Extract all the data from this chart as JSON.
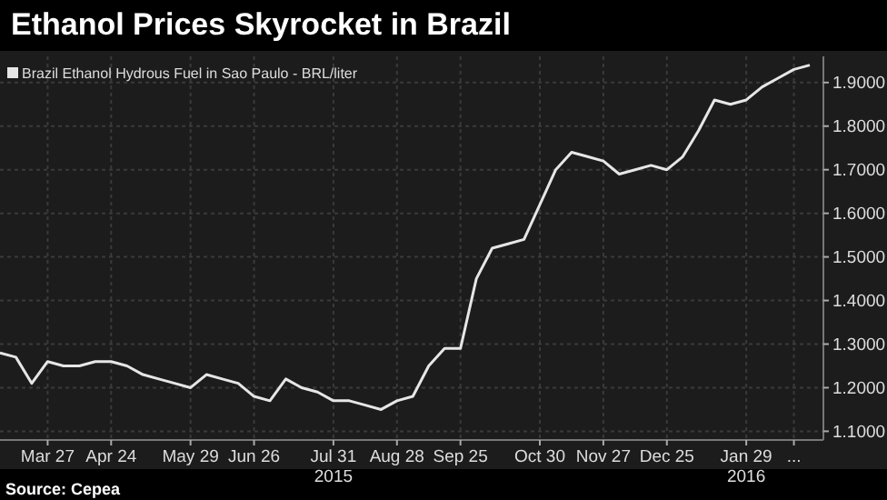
{
  "chart_data": {
    "type": "line",
    "title": "Ethanol Prices Skyrocket in Brazil",
    "x": [
      "2015-03-06",
      "2015-03-13",
      "2015-03-20",
      "2015-03-27",
      "2015-04-03",
      "2015-04-10",
      "2015-04-17",
      "2015-04-24",
      "2015-05-01",
      "2015-05-08",
      "2015-05-15",
      "2015-05-22",
      "2015-05-29",
      "2015-06-05",
      "2015-06-12",
      "2015-06-19",
      "2015-06-26",
      "2015-07-03",
      "2015-07-10",
      "2015-07-17",
      "2015-07-24",
      "2015-07-31",
      "2015-08-07",
      "2015-08-14",
      "2015-08-21",
      "2015-08-28",
      "2015-09-04",
      "2015-09-11",
      "2015-09-18",
      "2015-09-25",
      "2015-10-02",
      "2015-10-09",
      "2015-10-16",
      "2015-10-23",
      "2015-10-30",
      "2015-11-06",
      "2015-11-13",
      "2015-11-20",
      "2015-11-27",
      "2015-12-04",
      "2015-12-11",
      "2015-12-18",
      "2015-12-25",
      "2016-01-01",
      "2016-01-08",
      "2016-01-15",
      "2016-01-22",
      "2016-01-29",
      "2016-02-05",
      "2016-02-12",
      "2016-02-19",
      "2016-02-26"
    ],
    "series": [
      {
        "name": "Brazil Ethanol Hydrous Fuel in Sao Paulo - BRL/liter",
        "color": "#e6e6e6",
        "values": [
          1.28,
          1.27,
          1.21,
          1.26,
          1.25,
          1.25,
          1.26,
          1.26,
          1.25,
          1.23,
          1.22,
          1.21,
          1.2,
          1.23,
          1.22,
          1.21,
          1.18,
          1.17,
          1.22,
          1.2,
          1.19,
          1.17,
          1.17,
          1.16,
          1.15,
          1.17,
          1.18,
          1.25,
          1.29,
          1.29,
          1.45,
          1.52,
          1.53,
          1.54,
          1.62,
          1.7,
          1.74,
          1.73,
          1.72,
          1.69,
          1.7,
          1.71,
          1.7,
          1.73,
          1.79,
          1.86,
          1.85,
          1.86,
          1.89,
          1.91,
          1.93,
          1.94
        ]
      }
    ],
    "xlim": [
      "2015-03-06",
      "2016-03-03"
    ],
    "xticks": [
      {
        "value": "2015-03-27",
        "label": "Mar 27"
      },
      {
        "value": "2015-04-24",
        "label": "Apr 24"
      },
      {
        "value": "2015-05-29",
        "label": "May 29"
      },
      {
        "value": "2015-06-26",
        "label": "Jun 26"
      },
      {
        "value": "2015-07-31",
        "label": "Jul 31\n2015"
      },
      {
        "value": "2015-08-28",
        "label": "Aug 28"
      },
      {
        "value": "2015-09-25",
        "label": "Sep 25"
      },
      {
        "value": "2015-10-30",
        "label": "Oct 30"
      },
      {
        "value": "2015-11-27",
        "label": "Nov 27"
      },
      {
        "value": "2015-12-25",
        "label": "Dec 25"
      },
      {
        "value": "2016-01-29",
        "label": "Jan 29\n2016"
      },
      {
        "value": "2016-02-19",
        "label": "..."
      }
    ],
    "ylim": [
      1.08,
      1.96
    ],
    "yticks": [
      {
        "value": 1.1,
        "label": "1.1000"
      },
      {
        "value": 1.2,
        "label": "1.2000"
      },
      {
        "value": 1.3,
        "label": "1.3000"
      },
      {
        "value": 1.4,
        "label": "1.4000"
      },
      {
        "value": 1.5,
        "label": "1.5000"
      },
      {
        "value": 1.6,
        "label": "1.6000"
      },
      {
        "value": 1.7,
        "label": "1.7000"
      },
      {
        "value": 1.8,
        "label": "1.8000"
      },
      {
        "value": 1.9,
        "label": "1.9000"
      }
    ],
    "grid": true,
    "legend": "top left",
    "annotations": [
      "Source: Cepea"
    ]
  }
}
